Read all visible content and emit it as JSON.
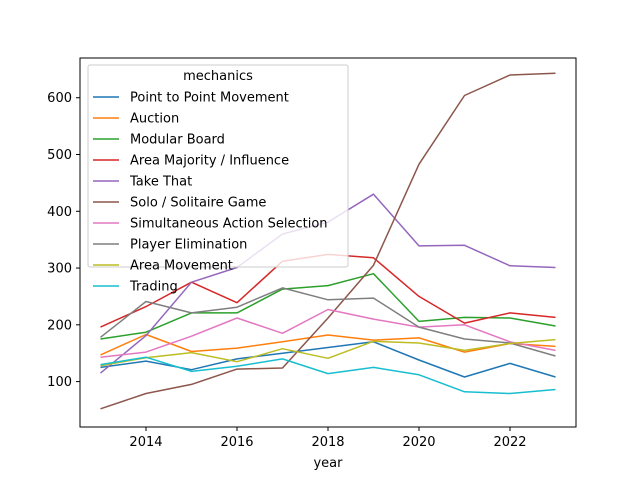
{
  "chart_data": {
    "type": "line",
    "title": "",
    "xlabel": "year",
    "ylabel": "",
    "xlim": [
      2012.55,
      2023.45
    ],
    "ylim": [
      20,
      670
    ],
    "x_ticks": [
      2014,
      2016,
      2018,
      2020,
      2022
    ],
    "y_ticks": [
      100,
      200,
      300,
      400,
      500,
      600
    ],
    "grid": false,
    "legend": {
      "title": "mechanics",
      "placement": "upper-left"
    },
    "x": [
      2013,
      2014,
      2015,
      2016,
      2017,
      2018,
      2019,
      2020,
      2021,
      2022,
      2023
    ],
    "series": [
      {
        "name": "Point to Point Movement",
        "color": "#1f77b4",
        "values": [
          125,
          136,
          121,
          140,
          150,
          160,
          170,
          138,
          108,
          132,
          108
        ]
      },
      {
        "name": "Auction",
        "color": "#ff7f0e",
        "values": [
          147,
          183,
          153,
          159,
          170,
          182,
          173,
          177,
          152,
          167,
          162
        ]
      },
      {
        "name": "Modular Board",
        "color": "#2ca02c",
        "values": [
          175,
          187,
          221,
          221,
          263,
          269,
          290,
          206,
          213,
          212,
          198
        ]
      },
      {
        "name": "Area Majority / Influence",
        "color": "#d62728",
        "values": [
          196,
          232,
          275,
          239,
          312,
          324,
          318,
          250,
          203,
          221,
          213
        ]
      },
      {
        "name": "Take That",
        "color": "#9467bd",
        "values": [
          115,
          181,
          275,
          301,
          360,
          381,
          430,
          339,
          340,
          304,
          301
        ]
      },
      {
        "name": "Solo / Solitaire Game",
        "color": "#8c564b",
        "values": [
          52,
          79,
          95,
          122,
          124,
          212,
          305,
          483,
          604,
          640,
          643
        ]
      },
      {
        "name": "Simultaneous Action Selection",
        "color": "#e377c2",
        "values": [
          143,
          152,
          180,
          212,
          185,
          227,
          210,
          196,
          200,
          170,
          155
        ]
      },
      {
        "name": "Player Elimination",
        "color": "#7f7f7f",
        "values": [
          178,
          241,
          221,
          231,
          265,
          244,
          247,
          196,
          175,
          168,
          145
        ]
      },
      {
        "name": "Area Movement",
        "color": "#bcbd22",
        "values": [
          128,
          142,
          151,
          135,
          158,
          141,
          171,
          168,
          155,
          167,
          174
        ]
      },
      {
        "name": "Trading",
        "color": "#17becf",
        "values": [
          130,
          143,
          118,
          127,
          140,
          114,
          125,
          112,
          82,
          79,
          86
        ]
      }
    ]
  }
}
